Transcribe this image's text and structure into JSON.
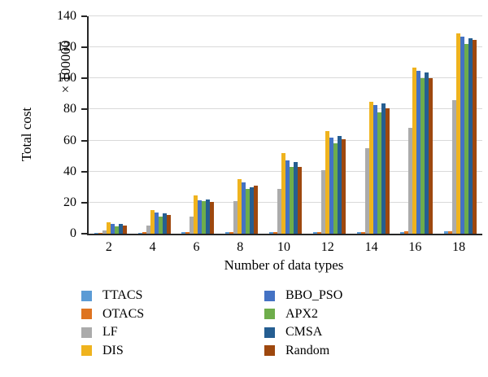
{
  "chart_data": {
    "type": "bar",
    "title": "",
    "xlabel": "Number of data types",
    "ylabel": "Total cost",
    "y_unit_label": "× 100000",
    "ylim": [
      0,
      140
    ],
    "ytick_step": 20,
    "grid": true,
    "legend_position": "bottom-two-columns",
    "axis_color": "#262626",
    "grid_color": "#D9D9D9",
    "categories": [
      "2",
      "4",
      "6",
      "8",
      "10",
      "12",
      "14",
      "16",
      "18"
    ],
    "series": [
      {
        "name": "TTACS",
        "color": "#5B9BD5",
        "values": [
          0.6,
          0.7,
          0.8,
          0.9,
          1.0,
          1.1,
          1.2,
          1.3,
          1.4
        ]
      },
      {
        "name": "OTACS",
        "color": "#DE7421",
        "values": [
          0.6,
          0.8,
          0.9,
          1.0,
          1.1,
          1.2,
          1.3,
          1.4,
          1.5
        ]
      },
      {
        "name": "LF",
        "color": "#ABABAB",
        "values": [
          2,
          5,
          11,
          21,
          29,
          41,
          55,
          68,
          86
        ]
      },
      {
        "name": "DIS",
        "color": "#EFB31E",
        "values": [
          7.5,
          15,
          24.5,
          35,
          52,
          66,
          85,
          107,
          129
        ]
      },
      {
        "name": "BBO_PSO",
        "color": "#4472C4",
        "values": [
          6.3,
          13.5,
          21.5,
          33,
          47,
          62,
          83,
          105,
          127
        ]
      },
      {
        "name": "APX2",
        "color": "#6EAD4B",
        "values": [
          4.8,
          11,
          21,
          29,
          43,
          58,
          78,
          100,
          122
        ]
      },
      {
        "name": "CMSA",
        "color": "#255E91",
        "values": [
          6.2,
          13,
          22,
          30,
          46,
          63,
          84,
          104,
          126
        ]
      },
      {
        "name": "Random",
        "color": "#9E480E",
        "values": [
          5.2,
          12.3,
          20.5,
          31,
          43,
          61,
          81,
          100,
          125
        ]
      }
    ]
  }
}
